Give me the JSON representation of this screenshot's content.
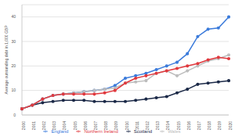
{
  "chart_data": {
    "type": "line",
    "y_label": "Average outstanding debt in 1,000 GBP",
    "categories": [
      "2000",
      "2001",
      "2002",
      "2003",
      "2004",
      "2005",
      "2006",
      "2007",
      "2008",
      "2009",
      "2010",
      "2011",
      "2012",
      "2013",
      "2014",
      "2015",
      "2016",
      "2017",
      "2018",
      "2019",
      "2020"
    ],
    "series": [
      {
        "name": "England",
        "color": "#3b7bdb",
        "values": [
          2.5,
          4,
          6.5,
          8,
          8.5,
          9,
          9.5,
          10,
          10.5,
          12,
          15,
          16,
          17,
          18.5,
          20,
          21.5,
          25,
          32,
          35,
          35.5,
          40
        ]
      },
      {
        "name": "Scotland",
        "color": "#1c2a48",
        "values": [
          2.5,
          4,
          5,
          5.5,
          6,
          6,
          6,
          5.5,
          5.5,
          5.5,
          5.5,
          6,
          6.5,
          7,
          7.5,
          9,
          10.5,
          12.5,
          13,
          13.5,
          14
        ]
      },
      {
        "name": "Wales",
        "color": "#bdbdbd",
        "values": [
          2.5,
          4,
          6.5,
          8,
          8.5,
          9,
          9.5,
          10,
          10.5,
          11,
          13,
          13.5,
          14,
          17,
          18,
          16,
          18,
          20,
          22,
          23,
          24.5
        ]
      },
      {
        "name": "Northern Ireland",
        "color": "#e0393e",
        "values": [
          2.5,
          4,
          6.5,
          8,
          8.5,
          8.5,
          8.5,
          8.5,
          9,
          10,
          13,
          15,
          16,
          17,
          18,
          19,
          20,
          21,
          22.5,
          23.5,
          23
        ]
      }
    ],
    "ylim": [
      0,
      45
    ],
    "yticks": [
      0,
      10,
      20,
      30,
      40
    ],
    "grid": true,
    "legend": "bottom",
    "marker": "circle"
  }
}
